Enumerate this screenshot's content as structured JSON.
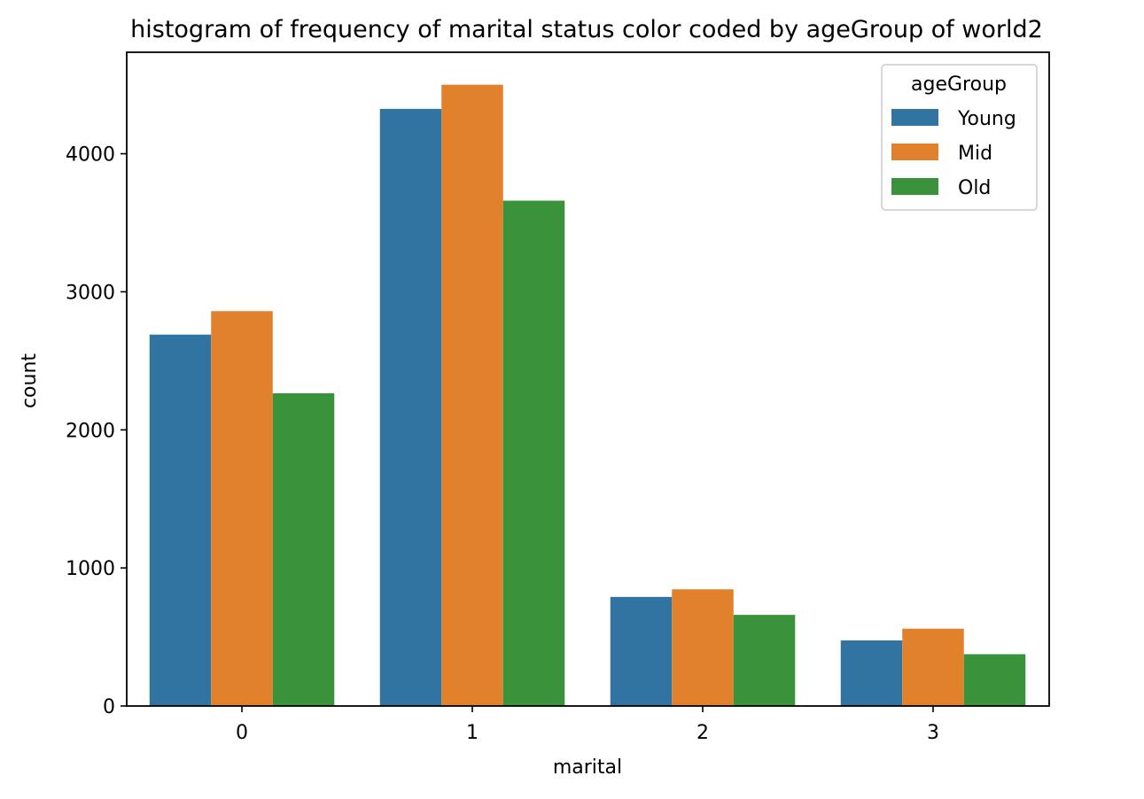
{
  "chart_data": {
    "type": "bar",
    "title": "histogram of frequency of marital status color coded by ageGroup of world2",
    "xlabel": "marital",
    "ylabel": "count",
    "categories": [
      "0",
      "1",
      "2",
      "3"
    ],
    "series": [
      {
        "name": "Young",
        "color": "#3274a1",
        "values": [
          2690,
          4325,
          790,
          475
        ]
      },
      {
        "name": "Mid",
        "color": "#e1812c",
        "values": [
          2860,
          4500,
          845,
          560
        ]
      },
      {
        "name": "Old",
        "color": "#3a923a",
        "values": [
          2265,
          3660,
          660,
          375
        ]
      }
    ],
    "ylim": [
      0,
      4735
    ],
    "yticks": [
      0,
      1000,
      2000,
      3000,
      4000
    ],
    "grid": false,
    "legend": {
      "title": "ageGroup",
      "placement": "top-right"
    }
  }
}
